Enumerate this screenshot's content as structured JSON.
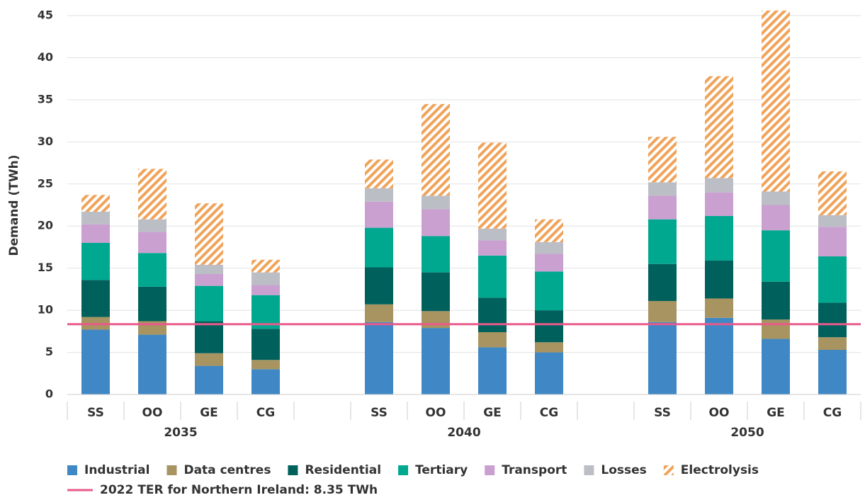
{
  "chart_data": {
    "type": "stacked_bar",
    "y_label": "Demand (TWh)",
    "categories": [
      "SS",
      "OO",
      "GE",
      "CG",
      null,
      "SS",
      "OO",
      "GE",
      "CG",
      null,
      "SS",
      "OO",
      "GE",
      "CG"
    ],
    "group_labels": [
      "2035",
      "2040",
      "2050"
    ],
    "ylim": [
      0,
      45
    ],
    "yticks": [
      0,
      5,
      10,
      15,
      20,
      25,
      30,
      35,
      40,
      45
    ],
    "grid": true,
    "series": [
      {
        "name": "Industrial",
        "color": "#3f88c5",
        "values": [
          7.7,
          7.1,
          3.4,
          3.0,
          null,
          8.6,
          7.9,
          5.6,
          5.0,
          null,
          8.6,
          9.1,
          6.6,
          5.3
        ]
      },
      {
        "name": "Data centres",
        "color": "#a89460",
        "values": [
          1.5,
          1.6,
          1.5,
          1.1,
          null,
          2.1,
          2.0,
          1.8,
          1.2,
          null,
          2.5,
          2.3,
          2.3,
          1.5
        ]
      },
      {
        "name": "Residential",
        "color": "#00605b",
        "values": [
          4.4,
          4.1,
          3.8,
          3.7,
          null,
          4.4,
          4.6,
          4.1,
          3.8,
          null,
          4.4,
          4.5,
          4.5,
          4.1
        ]
      },
      {
        "name": "Tertiary",
        "color": "#00a88f",
        "values": [
          4.4,
          4.0,
          4.2,
          4.0,
          null,
          4.7,
          4.3,
          5.0,
          4.6,
          null,
          5.3,
          5.3,
          6.1,
          5.5
        ]
      },
      {
        "name": "Transport",
        "color": "#c9a0d0",
        "values": [
          2.2,
          2.5,
          1.4,
          1.2,
          null,
          3.1,
          3.2,
          1.8,
          2.1,
          null,
          2.8,
          2.8,
          3.0,
          3.5
        ]
      },
      {
        "name": "Losses",
        "color": "#bcbec6",
        "values": [
          1.5,
          1.5,
          1.1,
          1.5,
          null,
          1.6,
          1.6,
          1.4,
          1.4,
          null,
          1.6,
          1.7,
          1.6,
          1.4
        ]
      },
      {
        "name": "Electrolysis",
        "color": "#f0a35a",
        "pattern": "hatch",
        "values": [
          2.0,
          6.0,
          7.3,
          1.5,
          null,
          3.4,
          10.9,
          10.2,
          2.7,
          null,
          5.4,
          12.1,
          21.5,
          5.2
        ]
      }
    ],
    "reference_line": {
      "value": 8.35,
      "label": "2022 TER for Northern Ireland: 8.35 TWh",
      "color": "#e85a8a"
    },
    "legend": "bottom"
  }
}
